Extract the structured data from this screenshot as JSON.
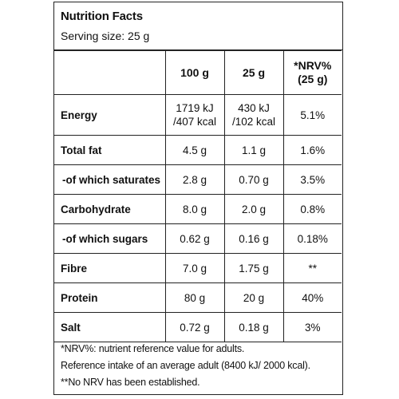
{
  "header": {
    "title": "Nutrition Facts",
    "serving": "Serving size: 25 g"
  },
  "columns": {
    "per100": "100 g",
    "per25": "25 g",
    "nrv_line1": "*NRV%",
    "nrv_line2": "(25 g)"
  },
  "rows": [
    {
      "label": "Energy",
      "per100_line1": "1719 kJ",
      "per100_line2": "/407 kcal",
      "per25_line1": "430 kJ",
      "per25_line2": "/102 kcal",
      "nrv": "5.1%"
    },
    {
      "label": "Total fat",
      "per100": "4.5 g",
      "per25": "1.1 g",
      "nrv": "1.6%"
    },
    {
      "label": "-of which saturates",
      "per100": "2.8 g",
      "per25": "0.70 g",
      "nrv": "3.5%"
    },
    {
      "label": "Carbohydrate",
      "per100": "8.0 g",
      "per25": "2.0 g",
      "nrv": "0.8%"
    },
    {
      "label": "-of which sugars",
      "per100": "0.62 g",
      "per25": "0.16 g",
      "nrv": "0.18%"
    },
    {
      "label": "Fibre",
      "per100": "7.0 g",
      "per25": "1.75 g",
      "nrv": "**"
    },
    {
      "label": "Protein",
      "per100": "80 g",
      "per25": "20 g",
      "nrv": "40%"
    },
    {
      "label": "Salt",
      "per100": "0.72 g",
      "per25": "0.18 g",
      "nrv": "3%"
    }
  ],
  "footnotes": [
    "*NRV%: nutrient reference value for adults.",
    "Reference intake of an average adult (8400 kJ/ 2000 kcal).",
    "**No NRV has been established."
  ]
}
